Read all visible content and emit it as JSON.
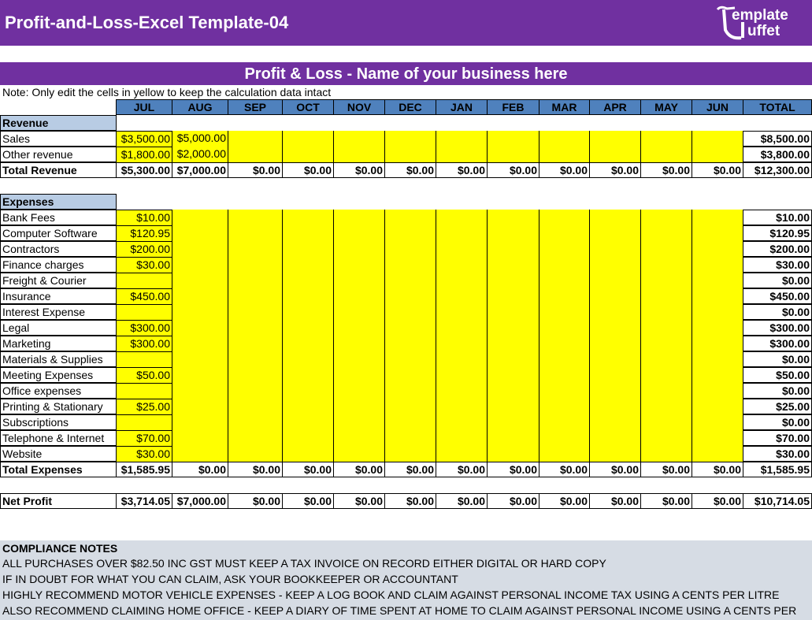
{
  "header": {
    "title": "Profit-and-Loss-Excel Template-04",
    "logo": [
      "emplate",
      "uffet"
    ]
  },
  "sheet": {
    "title": "Profit & Loss - Name of your business here",
    "note": "Note: Only edit the cells in yellow to keep the calculation data intact",
    "columns": [
      "JUL",
      "AUG",
      "SEP",
      "OCT",
      "NOV",
      "DEC",
      "JAN",
      "FEB",
      "MAR",
      "APR",
      "MAY",
      "JUN",
      "TOTAL"
    ],
    "revenue": {
      "label": "Revenue",
      "rows": [
        {
          "label": "Sales",
          "cells": [
            "$3,500.00",
            "$5,000.00",
            null,
            null,
            null,
            null,
            null,
            null,
            null,
            null,
            null,
            null
          ],
          "total": "$8,500.00"
        },
        {
          "label": "Other revenue",
          "cells": [
            "$1,800.00",
            "$2,000.00",
            null,
            null,
            null,
            null,
            null,
            null,
            null,
            null,
            null,
            null
          ],
          "total": "$3,800.00"
        }
      ],
      "sum": {
        "label": "Total Revenue",
        "cells": [
          "$5,300.00",
          "$7,000.00",
          "$0.00",
          "$0.00",
          "$0.00",
          "$0.00",
          "$0.00",
          "$0.00",
          "$0.00",
          "$0.00",
          "$0.00",
          "$0.00"
        ],
        "total": "$12,300.00"
      }
    },
    "expenses": {
      "label": "Expenses",
      "rows": [
        {
          "label": "Bank Fees",
          "cells": [
            "$10.00",
            null,
            null,
            null,
            null,
            null,
            null,
            null,
            null,
            null,
            null,
            null
          ],
          "total": "$10.00"
        },
        {
          "label": "Computer Software",
          "cells": [
            "$120.95",
            null,
            null,
            null,
            null,
            null,
            null,
            null,
            null,
            null,
            null,
            null
          ],
          "total": "$120.95"
        },
        {
          "label": "Contractors",
          "cells": [
            "$200.00",
            null,
            null,
            null,
            null,
            null,
            null,
            null,
            null,
            null,
            null,
            null
          ],
          "total": "$200.00"
        },
        {
          "label": "Finance charges",
          "cells": [
            "$30.00",
            null,
            null,
            null,
            null,
            null,
            null,
            null,
            null,
            null,
            null,
            null
          ],
          "total": "$30.00"
        },
        {
          "label": "Freight & Courier",
          "cells": [
            null,
            null,
            null,
            null,
            null,
            null,
            null,
            null,
            null,
            null,
            null,
            null
          ],
          "total": "$0.00"
        },
        {
          "label": "Insurance",
          "cells": [
            "$450.00",
            null,
            null,
            null,
            null,
            null,
            null,
            null,
            null,
            null,
            null,
            null
          ],
          "total": "$450.00"
        },
        {
          "label": "Interest Expense",
          "cells": [
            null,
            null,
            null,
            null,
            null,
            null,
            null,
            null,
            null,
            null,
            null,
            null
          ],
          "total": "$0.00"
        },
        {
          "label": "Legal",
          "cells": [
            "$300.00",
            null,
            null,
            null,
            null,
            null,
            null,
            null,
            null,
            null,
            null,
            null
          ],
          "total": "$300.00"
        },
        {
          "label": "Marketing",
          "cells": [
            "$300.00",
            null,
            null,
            null,
            null,
            null,
            null,
            null,
            null,
            null,
            null,
            null
          ],
          "total": "$300.00"
        },
        {
          "label": "Materials & Supplies",
          "cells": [
            null,
            null,
            null,
            null,
            null,
            null,
            null,
            null,
            null,
            null,
            null,
            null
          ],
          "total": "$0.00"
        },
        {
          "label": "Meeting Expenses",
          "cells": [
            "$50.00",
            null,
            null,
            null,
            null,
            null,
            null,
            null,
            null,
            null,
            null,
            null
          ],
          "total": "$50.00"
        },
        {
          "label": "Office expenses",
          "cells": [
            null,
            null,
            null,
            null,
            null,
            null,
            null,
            null,
            null,
            null,
            null,
            null
          ],
          "total": "$0.00"
        },
        {
          "label": "Printing & Stationary",
          "cells": [
            "$25.00",
            null,
            null,
            null,
            null,
            null,
            null,
            null,
            null,
            null,
            null,
            null
          ],
          "total": "$25.00"
        },
        {
          "label": "Subscriptions",
          "cells": [
            null,
            null,
            null,
            null,
            null,
            null,
            null,
            null,
            null,
            null,
            null,
            null
          ],
          "total": "$0.00"
        },
        {
          "label": "Telephone & Internet",
          "cells": [
            "$70.00",
            null,
            null,
            null,
            null,
            null,
            null,
            null,
            null,
            null,
            null,
            null
          ],
          "total": "$70.00"
        },
        {
          "label": "Website",
          "cells": [
            "$30.00",
            null,
            null,
            null,
            null,
            null,
            null,
            null,
            null,
            null,
            null,
            null
          ],
          "total": "$30.00"
        }
      ],
      "sum": {
        "label": "Total Expenses",
        "cells": [
          "$1,585.95",
          "$0.00",
          "$0.00",
          "$0.00",
          "$0.00",
          "$0.00",
          "$0.00",
          "$0.00",
          "$0.00",
          "$0.00",
          "$0.00",
          "$0.00"
        ],
        "total": "$1,585.95"
      }
    },
    "net_profit": {
      "label": "Net Profit",
      "cells": [
        "$3,714.05",
        "$7,000.00",
        "$0.00",
        "$0.00",
        "$0.00",
        "$0.00",
        "$0.00",
        "$0.00",
        "$0.00",
        "$0.00",
        "$0.00",
        "$0.00"
      ],
      "total": "$10,714.05"
    }
  },
  "compliance": {
    "title": "COMPLIANCE NOTES",
    "lines": [
      "ALL PURCHASES OVER $82.50 INC GST MUST KEEP A TAX INVOICE ON RECORD EITHER DIGITAL OR HARD COPY",
      "IF IN DOUBT FOR WHAT YOU CAN CLAIM, ASK YOUR BOOKKEEPER OR ACCOUNTANT",
      "HIGHLY RECOMMEND MOTOR VEHICLE EXPENSES - KEEP A LOG BOOK AND CLAIM AGAINST PERSONAL INCOME TAX USING A CENTS PER LITRE",
      "ALSO RECOMMEND CLAIMING HOME OFFICE - KEEP A DIARY OF TIME SPENT AT HOME TO CLAIM  AGAINST PERSONAL INCOME USING A CENTS PER"
    ]
  }
}
